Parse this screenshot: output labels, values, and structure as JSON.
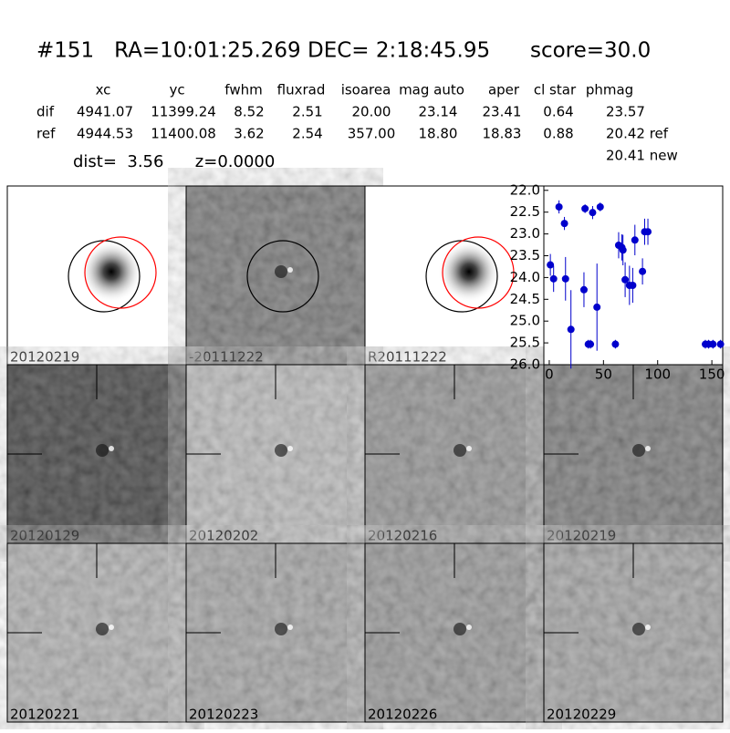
{
  "header": {
    "title": "#151   RA=10:01:25.269 DEC= 2:18:45.95      score=30.0"
  },
  "table": {
    "columns": [
      "xc",
      "yc",
      "fwhm",
      "fluxrad",
      "isoarea",
      "mag auto",
      "aper",
      "cl star",
      "phmag"
    ],
    "rows": [
      [
        "dif",
        "4941.07",
        "11399.24",
        "8.52",
        "2.51",
        "20.00",
        "23.14",
        "23.41",
        "0.64",
        "23.57"
      ],
      [
        "ref",
        "4944.53",
        "11400.08",
        "3.62",
        "2.54",
        "357.00",
        "18.80",
        "18.83",
        "0.88",
        "20.42 ref"
      ]
    ],
    "extra": "20.41 new"
  },
  "dist": "dist=  3.56      z=0.0000",
  "panels": [
    {
      "label": "20120219"
    },
    {
      "label": "-20111222"
    },
    {
      "label": "R20111222"
    },
    {
      "label": "20120129"
    },
    {
      "label": "20120202"
    },
    {
      "label": "20120216"
    },
    {
      "label": "20120219",
      "color": "#ff0000"
    },
    {
      "label": "20120221"
    },
    {
      "label": "20120223"
    },
    {
      "label": "20120226"
    },
    {
      "label": "20120229"
    }
  ],
  "chart_data": {
    "type": "scatter",
    "color": "#0000cc",
    "x": [
      1,
      4,
      9,
      14,
      15,
      20,
      32,
      33,
      36,
      38,
      40,
      44,
      47,
      61,
      64,
      67,
      68,
      70,
      74,
      77,
      79,
      86,
      88,
      91,
      144,
      147,
      151,
      158
    ],
    "values": [
      23.71,
      24.03,
      22.38,
      22.76,
      24.03,
      25.19,
      24.28,
      22.42,
      25.53,
      25.53,
      22.51,
      24.68,
      22.38,
      25.53,
      23.26,
      23.31,
      23.37,
      24.05,
      24.18,
      24.18,
      23.14,
      23.86,
      22.95,
      22.95,
      25.53,
      25.53,
      25.53,
      25.53
    ],
    "errors": [
      0.25,
      0.3,
      0.15,
      0.15,
      0.5,
      0.9,
      0.4,
      0.1,
      0.1,
      0.1,
      0.15,
      1.0,
      0.1,
      0.1,
      0.3,
      0.3,
      0.35,
      0.4,
      0.45,
      0.4,
      0.35,
      0.3,
      0.3,
      0.3,
      0.1,
      0.1,
      0.1,
      0.1
    ],
    "xlim": [
      -5,
      160
    ],
    "ylim": [
      21.9,
      26.0
    ],
    "y_inverted": true,
    "xticks": [
      0,
      50,
      100,
      150
    ],
    "yticks": [
      {
        "value": 22,
        "label": "22.0"
      },
      22.5,
      {
        "value": 23,
        "label": "23.0"
      },
      23.5,
      {
        "value": 24,
        "label": "24.0"
      },
      24.5,
      {
        "value": 25,
        "label": "25.0"
      },
      25.5,
      {
        "value": 26,
        "label": "26.0"
      }
    ]
  }
}
